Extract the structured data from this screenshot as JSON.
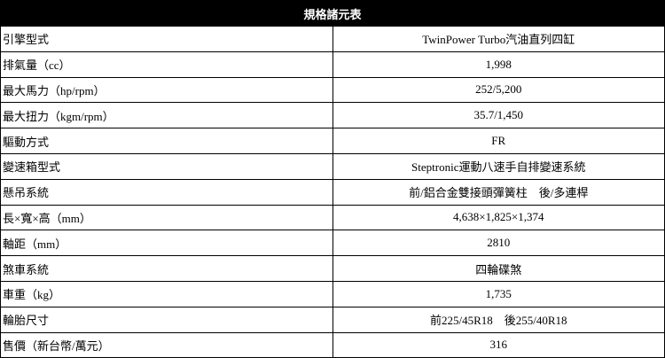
{
  "title": "規格諸元表",
  "rows": [
    {
      "label": "引擎型式",
      "value": "TwinPower Turbo汽油直列四缸"
    },
    {
      "label": "排氣量（cc）",
      "value": "1,998"
    },
    {
      "label": "最大馬力（hp/rpm）",
      "value": "252/5,200"
    },
    {
      "label": "最大扭力（kgm/rpm）",
      "value": "35.7/1,450"
    },
    {
      "label": "驅動方式",
      "value": "FR"
    },
    {
      "label": "變速箱型式",
      "value": "Steptronic運動八速手自排變速系統"
    },
    {
      "label": "懸吊系統",
      "value": "前/鋁合金雙接頭彈簧柱　後/多連桿"
    },
    {
      "label": "長×寬×高（mm）",
      "value": "4,638×1,825×1,374"
    },
    {
      "label": "軸距（mm）",
      "value": "2810"
    },
    {
      "label": "煞車系統",
      "value": "四輪碟煞"
    },
    {
      "label": "車重（kg）",
      "value": "1,735"
    },
    {
      "label": "輪胎尺寸",
      "value": "前225/45R18　後255/40R18"
    },
    {
      "label": "售價（新台幣/萬元）",
      "value": "316"
    }
  ]
}
